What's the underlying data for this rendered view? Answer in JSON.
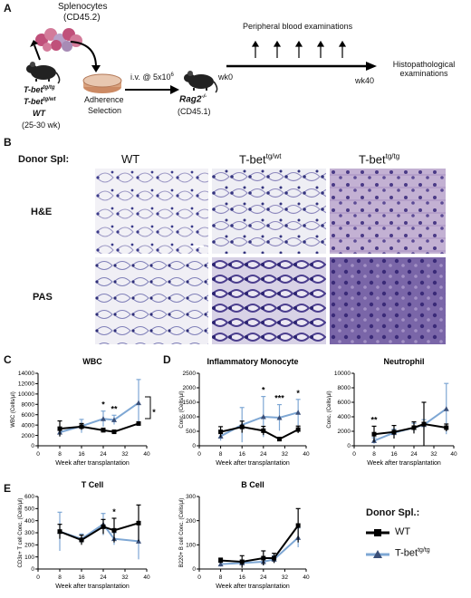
{
  "panelA": {
    "letter": "A",
    "splenocytes": "Splenocytes",
    "cd452": "(CD45.2)",
    "donor_genotypes": [
      "T-bet",
      "T-bet",
      "WT"
    ],
    "donor_sups": [
      "tg/tg",
      "tg/wt"
    ],
    "age": "(25-30 wk)",
    "adherence": "Adherence",
    "selection": "Selection",
    "iv": "i.v. @ 5x10",
    "iv_sup": "6",
    "recipient": "Rag2",
    "recipient_sup": "-/-",
    "recipient_cd": "(CD45.1)",
    "wk0": "wk0",
    "wk40": "wk40",
    "peripheral": "Peripheral blood examinations",
    "histo1": "Histopathological",
    "histo2": "examinations"
  },
  "panelB": {
    "letter": "B",
    "donor_label": "Donor Spl:",
    "col_wt": "WT",
    "col_tgwt": "T-bet",
    "col_tgwt_sup": "tg/wt",
    "col_tgtg": "T-bet",
    "col_tgtg_sup": "tg/tg",
    "row_he": "H&E",
    "row_pas": "PAS"
  },
  "legend": {
    "title": "Donor Spl.:",
    "wt": "WT",
    "tg": "T-bet",
    "tg_sup": "tg/tg"
  },
  "colors": {
    "wt": "#000000",
    "tg": "#7ea7d4"
  },
  "chart_data": [
    {
      "panel": "C",
      "type": "line",
      "title": "WBC",
      "xlabel": "Week after transplantation",
      "ylabel": "WBC (Cells/μl)",
      "xlim": [
        0,
        40
      ],
      "ylim": [
        0,
        14000
      ],
      "xticks": [
        0,
        8,
        16,
        24,
        32,
        40
      ],
      "yticks": [
        0,
        2000,
        4000,
        6000,
        8000,
        10000,
        12000,
        14000
      ],
      "x": [
        8,
        16,
        24,
        28,
        37
      ],
      "series": [
        {
          "name": "WT",
          "values": [
            3300,
            3700,
            3000,
            2700,
            4300
          ],
          "err": [
            1500,
            600,
            400,
            300,
            300
          ]
        },
        {
          "name": "T-bet tg/tg",
          "values": [
            2600,
            3800,
            5200,
            5000,
            8300
          ],
          "err": [
            800,
            1300,
            1500,
            900,
            4500
          ]
        }
      ],
      "annotations": [
        {
          "x": 24,
          "text": "*"
        },
        {
          "x": 28,
          "text": "**"
        },
        {
          "x": 39,
          "text": "*"
        }
      ]
    },
    {
      "panel": "D",
      "type": "line",
      "title": "Inflammatory Monocyte",
      "xlabel": "Week after transplantation",
      "ylabel": "Conc. (Cells/μl)",
      "xlim": [
        0,
        40
      ],
      "ylim": [
        0,
        2500
      ],
      "xticks": [
        0,
        8,
        16,
        24,
        32,
        40
      ],
      "yticks": [
        0,
        500,
        1000,
        1500,
        2000,
        2500
      ],
      "x": [
        8,
        16,
        24,
        30,
        37
      ],
      "series": [
        {
          "name": "WT",
          "values": [
            480,
            650,
            520,
            230,
            560
          ],
          "err": [
            180,
            200,
            150,
            60,
            120
          ]
        },
        {
          "name": "T-bet tg/tg",
          "values": [
            330,
            720,
            1000,
            970,
            1150
          ],
          "err": [
            150,
            600,
            700,
            450,
            450
          ]
        }
      ],
      "annotations": [
        {
          "x": 24,
          "text": "*"
        },
        {
          "x": 30,
          "text": "***"
        },
        {
          "x": 37,
          "text": "*"
        }
      ]
    },
    {
      "panel": "D",
      "type": "line",
      "title": "Neutrophil",
      "xlabel": "Week after transplantation",
      "ylabel": "Conc. (Cells/μl)",
      "xlim": [
        0,
        40
      ],
      "ylim": [
        0,
        10000
      ],
      "xticks": [
        0,
        8,
        16,
        24,
        32,
        40
      ],
      "yticks": [
        0,
        2000,
        4000,
        6000,
        8000,
        10000
      ],
      "x": [
        8,
        16,
        24,
        28,
        37
      ],
      "series": [
        {
          "name": "WT",
          "values": [
            1600,
            1900,
            2500,
            3000,
            2500
          ],
          "err": [
            1100,
            900,
            800,
            3000,
            500
          ]
        },
        {
          "name": "T-bet tg/tg",
          "values": [
            700,
            1800,
            2500,
            2900,
            5100
          ],
          "err": [
            400,
            500,
            600,
            700,
            3500
          ]
        }
      ],
      "annotations": [
        {
          "x": 8,
          "text": "**"
        }
      ]
    },
    {
      "panel": "E",
      "type": "line",
      "title": "T Cell",
      "xlabel": "Week after transplantation",
      "ylabel": "CD3ε+ T cell Conc. (Cells/μl)",
      "xlim": [
        0,
        40
      ],
      "ylim": [
        0,
        600
      ],
      "xticks": [
        0,
        8,
        16,
        24,
        32,
        40
      ],
      "yticks": [
        0,
        100,
        200,
        300,
        400,
        500,
        600
      ],
      "x": [
        8,
        16,
        24,
        28,
        37
      ],
      "series": [
        {
          "name": "WT",
          "values": [
            310,
            240,
            350,
            320,
            380
          ],
          "err": [
            60,
            40,
            60,
            100,
            150
          ]
        },
        {
          "name": "T-bet tg/tg",
          "values": [
            310,
            250,
            370,
            250,
            230
          ],
          "err": [
            160,
            40,
            90,
            50,
            150
          ]
        }
      ],
      "annotations": [
        {
          "x": 28,
          "text": "*"
        }
      ]
    },
    {
      "panel": "E",
      "type": "line",
      "title": "B Cell",
      "xlabel": "Week after transplantation",
      "ylabel": "B220+ B cell Conc. (Cells/μl)",
      "xlim": [
        0,
        40
      ],
      "ylim": [
        0,
        300
      ],
      "xticks": [
        0,
        8,
        16,
        24,
        32,
        40
      ],
      "yticks": [
        0,
        100,
        200,
        300
      ],
      "x": [
        8,
        16,
        24,
        28,
        37
      ],
      "series": [
        {
          "name": "WT",
          "values": [
            35,
            30,
            45,
            45,
            180
          ],
          "err": [
            10,
            25,
            30,
            20,
            70
          ]
        },
        {
          "name": "T-bet tg/tg",
          "values": [
            20,
            25,
            30,
            40,
            130
          ],
          "err": [
            10,
            10,
            15,
            15,
            40
          ]
        }
      ],
      "annotations": []
    }
  ]
}
